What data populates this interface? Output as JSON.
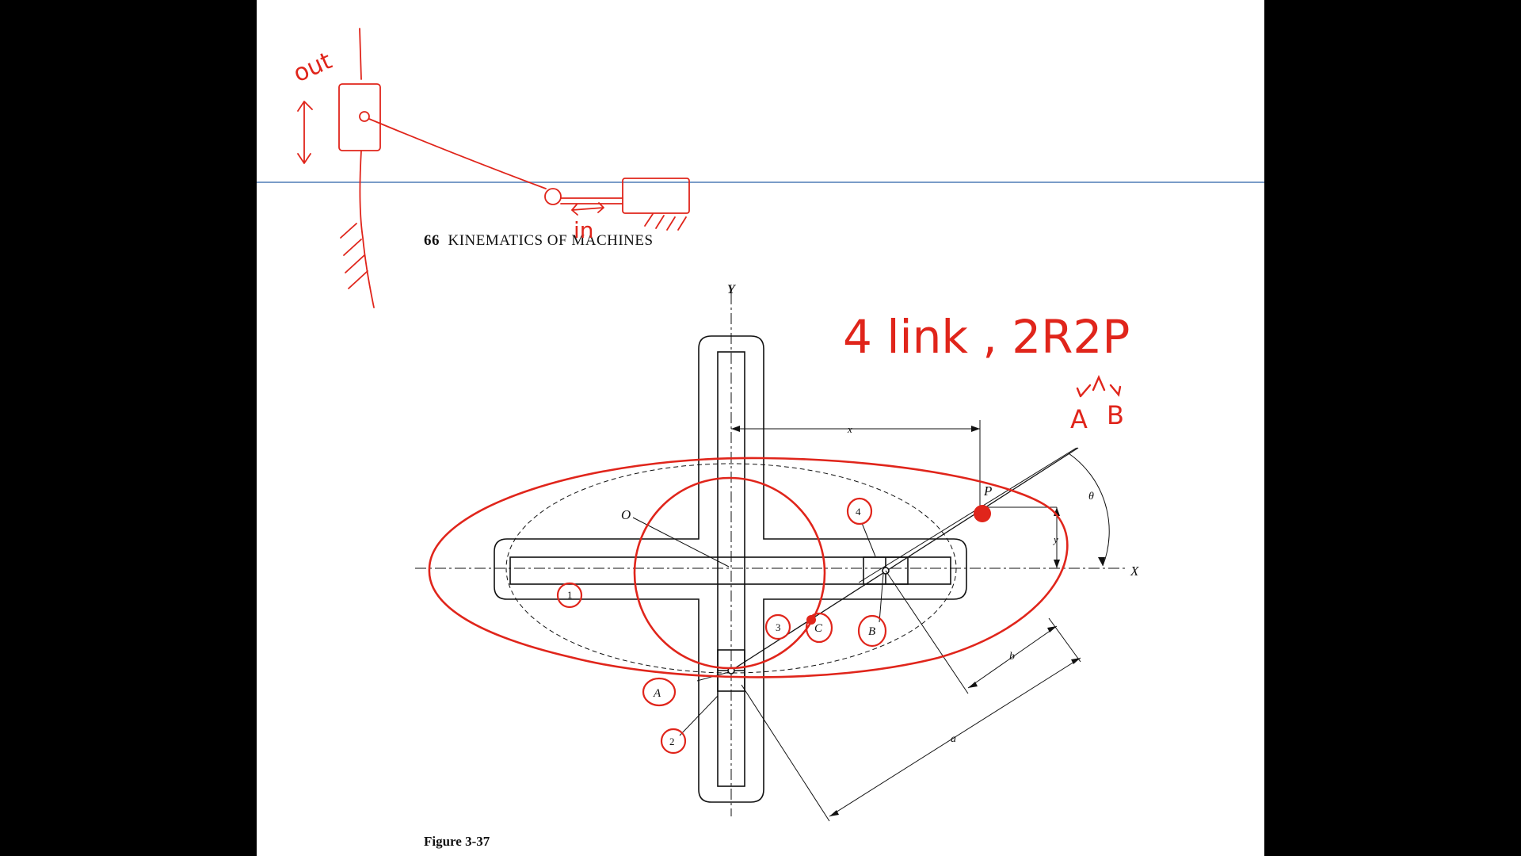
{
  "page": {
    "header_number": "66",
    "header_title": "KINEMATICS OF MACHINES",
    "caption": "Figure 3-37"
  },
  "figure_labels": {
    "y_axis": "Y",
    "x_axis": "X",
    "x_dim": "x",
    "y_dim": "y",
    "theta": "θ",
    "a_dim": "a",
    "b_dim": "b",
    "point_o": "O",
    "point_p": "P",
    "point_a": "A",
    "point_b": "B",
    "point_c": "C",
    "link_1": "1",
    "link_2": "2",
    "link_3": "3",
    "link_4": "4"
  },
  "annotations": {
    "out": "out",
    "in": "in",
    "summary": "4 link , 2R2P",
    "joint_a": "A",
    "joint_b": "B"
  },
  "colors": {
    "ink_red": "#e0251b",
    "guide_line": "#7a9cc8",
    "page": "#ffffff",
    "frame": "#000000"
  }
}
